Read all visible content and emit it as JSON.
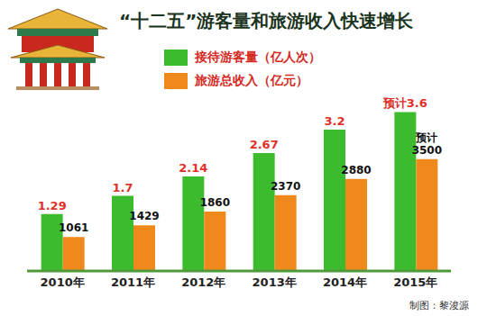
{
  "chart_data": {
    "type": "bar",
    "title": "“十二五”游客量和旅游收入快速增长",
    "categories": [
      "2010年",
      "2011年",
      "2012年",
      "2013年",
      "2014年",
      "2015年"
    ],
    "series": [
      {
        "name": "接待游客量（亿人次）",
        "color": "#3dbb2f",
        "values": [
          1.29,
          1.7,
          2.14,
          2.67,
          3.2,
          3.6
        ],
        "value_labels": [
          "1.29",
          "1.7",
          "2.14",
          "2.67",
          "3.2",
          "预计3.6"
        ]
      },
      {
        "name": "旅游总收入（亿元）",
        "color": "#f0891c",
        "axis": "y2",
        "values": [
          1061,
          1429,
          1860,
          2370,
          2880,
          3500
        ],
        "value_labels": [
          "1061",
          "1429",
          "1860",
          "2370",
          "2880",
          "预计3500"
        ]
      }
    ],
    "ylim": [
      0,
      4.2
    ],
    "y2lim": [
      0,
      5800
    ],
    "data_labels": true,
    "tick_labels": "x",
    "grid": false,
    "legend": "top",
    "annotations": [
      "制图：黎浚源"
    ]
  }
}
